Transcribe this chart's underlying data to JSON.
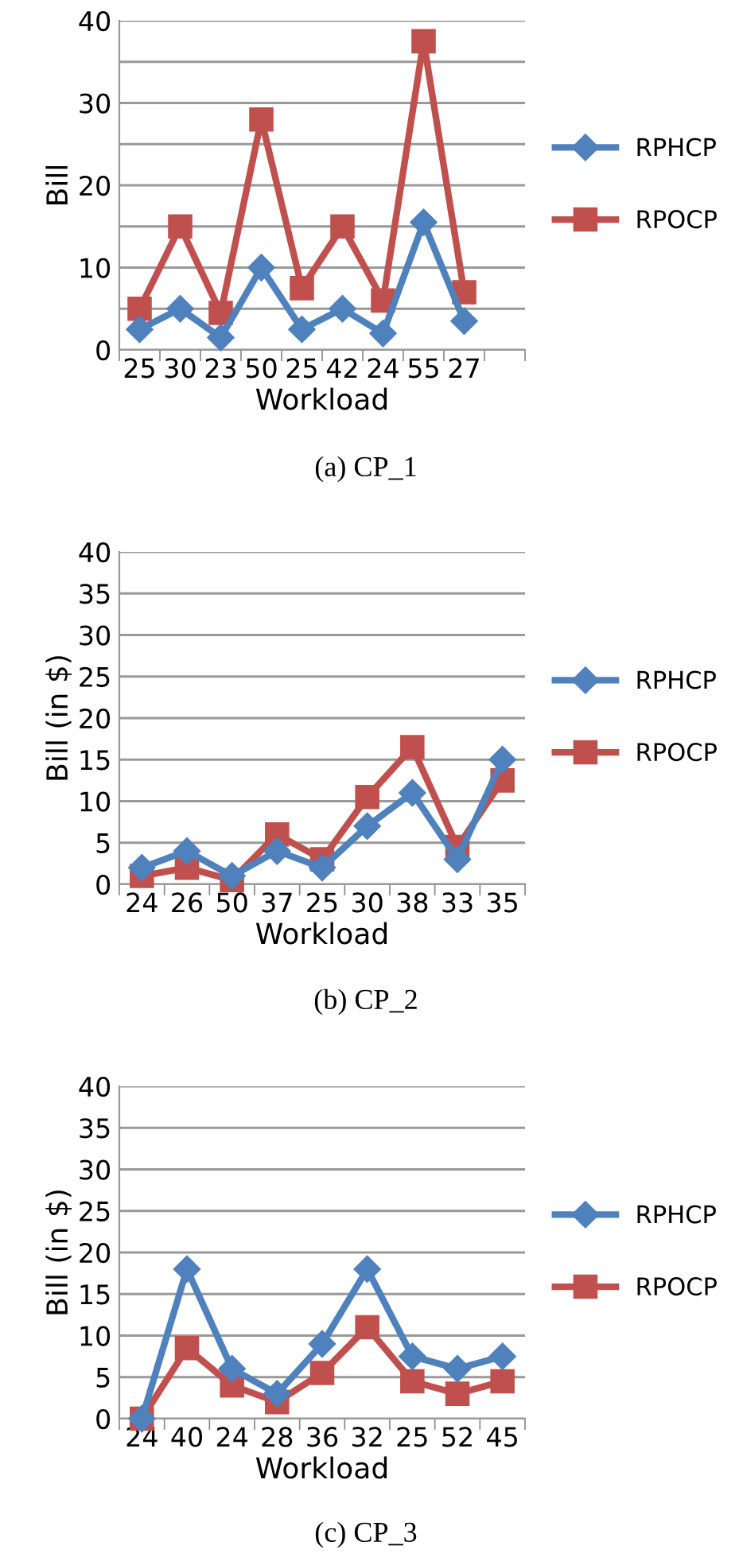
{
  "chart_data": [
    {
      "type": "line",
      "xlabel": "Workload",
      "ylabel": "Bill",
      "annotations": [
        "(a) CP_1"
      ],
      "categories": [
        "25",
        "30",
        "23",
        "50",
        "25",
        "42",
        "24",
        "55",
        "27",
        null
      ],
      "series": [
        {
          "name": "RPHCP",
          "color": "#4f81bd",
          "marker": "diamond",
          "values": [
            2.5,
            5,
            1.5,
            10,
            2.5,
            5,
            2,
            15.5,
            3.5,
            null
          ]
        },
        {
          "name": "RPOCP",
          "color": "#c0504d",
          "marker": "square",
          "values": [
            5,
            15,
            4.5,
            28,
            7.5,
            15,
            6,
            37.5,
            7,
            null
          ]
        }
      ],
      "ylim": [
        0,
        40
      ],
      "yticks": [
        0,
        {
          "value": 5,
          "label": null
        },
        10,
        {
          "value": 15,
          "label": null
        },
        20,
        {
          "value": 25,
          "label": null
        },
        30,
        {
          "value": 35,
          "label": null
        },
        40
      ],
      "grid": "y",
      "legend": "right"
    },
    {
      "type": "line",
      "xlabel": "Workload",
      "ylabel": "Bill (in $)",
      "annotations": [
        "(b) CP_2"
      ],
      "categories": [
        "24",
        "26",
        "50",
        "37",
        "25",
        "30",
        "38",
        "33",
        "35"
      ],
      "series": [
        {
          "name": "RPHCP",
          "color": "#4f81bd",
          "marker": "diamond",
          "values": [
            2,
            4,
            1,
            4,
            2,
            7,
            11,
            3,
            15
          ]
        },
        {
          "name": "RPOCP",
          "color": "#c0504d",
          "marker": "square",
          "values": [
            1,
            2,
            0.5,
            6,
            3,
            10.5,
            16.5,
            4.5,
            12.5
          ]
        }
      ],
      "ylim": [
        0,
        40
      ],
      "yticks": [
        0,
        5,
        10,
        15,
        20,
        25,
        30,
        35,
        40
      ],
      "grid": "y",
      "legend": "right"
    },
    {
      "type": "line",
      "xlabel": "Workload",
      "ylabel": "Bill (in $)",
      "annotations": [
        "(c) CP_3"
      ],
      "categories": [
        "24",
        "40",
        "24",
        "28",
        "36",
        "32",
        "25",
        "52",
        "45"
      ],
      "series": [
        {
          "name": "RPHCP",
          "color": "#4f81bd",
          "marker": "diamond",
          "values": [
            0,
            18,
            6,
            3,
            9,
            18,
            7.5,
            6,
            7.5
          ]
        },
        {
          "name": "RPOCP",
          "color": "#c0504d",
          "marker": "square",
          "values": [
            0,
            8.5,
            4,
            2,
            5.5,
            11,
            4.5,
            3,
            4.5
          ]
        }
      ],
      "ylim": [
        0,
        40
      ],
      "yticks": [
        0,
        5,
        10,
        15,
        20,
        25,
        30,
        35,
        40
      ],
      "grid": "y",
      "legend": "right"
    }
  ]
}
